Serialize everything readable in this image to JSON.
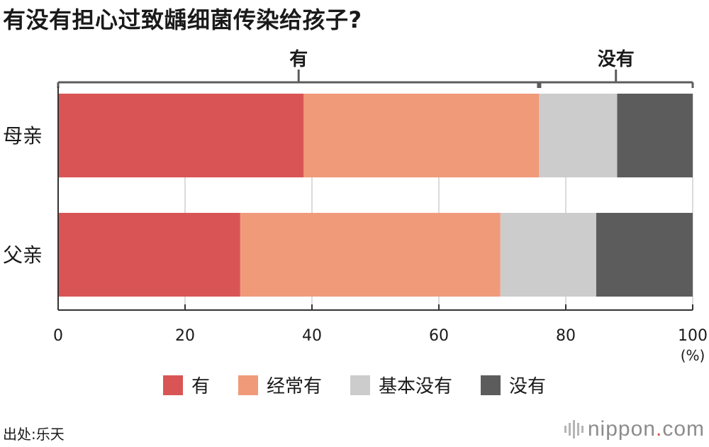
{
  "title": "有没有担心过致龋细菌传染给孩子?",
  "source": "出处:乐天",
  "logo": {
    "text": "nippon",
    "dot": ".",
    "suffix": "com"
  },
  "chart_data": {
    "type": "bar",
    "orientation": "horizontal",
    "stacked": true,
    "categories": [
      "母亲",
      "父亲"
    ],
    "series": [
      {
        "name": "有",
        "color": "#d95555",
        "values": [
          38.7,
          28.7
        ]
      },
      {
        "name": "经常有",
        "color": "#f09a7a",
        "values": [
          37.1,
          41.0
        ]
      },
      {
        "name": "基本没有",
        "color": "#cccccc",
        "values": [
          12.3,
          15.1
        ]
      },
      {
        "name": "没有",
        "color": "#5c5c5c",
        "values": [
          11.9,
          15.2
        ]
      }
    ],
    "xlim": [
      0,
      100
    ],
    "xticks": [
      "0",
      "20",
      "40",
      "60",
      "80",
      "100"
    ],
    "xunit": "(%)",
    "grid": true,
    "legend": "bottom",
    "brackets": [
      {
        "label": "有",
        "from": 0,
        "to": 75.8
      },
      {
        "label": "没有",
        "from": 75.8,
        "to": 100
      }
    ]
  }
}
